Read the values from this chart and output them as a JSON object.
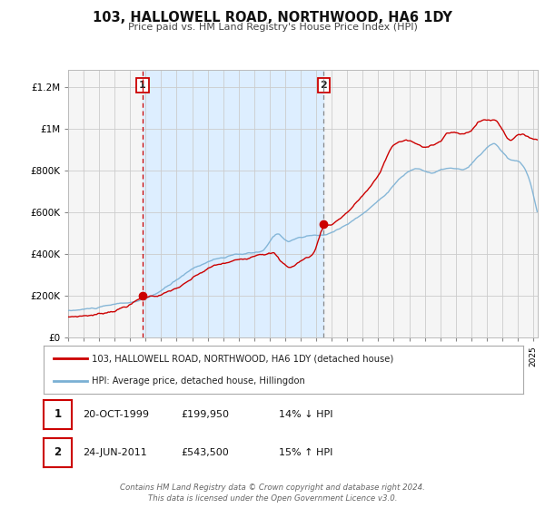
{
  "title": "103, HALLOWELL ROAD, NORTHWOOD, HA6 1DY",
  "subtitle": "Price paid vs. HM Land Registry's House Price Index (HPI)",
  "legend_line1": "103, HALLOWELL ROAD, NORTHWOOD, HA6 1DY (detached house)",
  "legend_line2": "HPI: Average price, detached house, Hillingdon",
  "footer1": "Contains HM Land Registry data © Crown copyright and database right 2024.",
  "footer2": "This data is licensed under the Open Government Licence v3.0.",
  "sale1_date": "20-OCT-1999",
  "sale1_price": "£199,950",
  "sale1_hpi": "14% ↓ HPI",
  "sale2_date": "24-JUN-2011",
  "sale2_price": "£543,500",
  "sale2_hpi": "15% ↑ HPI",
  "sale1_x": 1999.8,
  "sale1_y": 199950,
  "sale2_x": 2011.48,
  "sale2_y": 543500,
  "vline1_x": 1999.8,
  "vline2_x": 2011.48,
  "shade_x1": 1999.8,
  "shade_x2": 2011.48,
  "ylim": [
    0,
    1280000
  ],
  "xlim_start": 1995.0,
  "xlim_end": 2025.3,
  "red_color": "#cc0000",
  "blue_color": "#7ab0d4",
  "shade_color": "#ddeeff",
  "grid_color": "#cccccc",
  "bg_color": "#f5f5f5",
  "box_color": "#cc0000",
  "yticks": [
    0,
    200000,
    400000,
    600000,
    800000,
    1000000,
    1200000
  ]
}
